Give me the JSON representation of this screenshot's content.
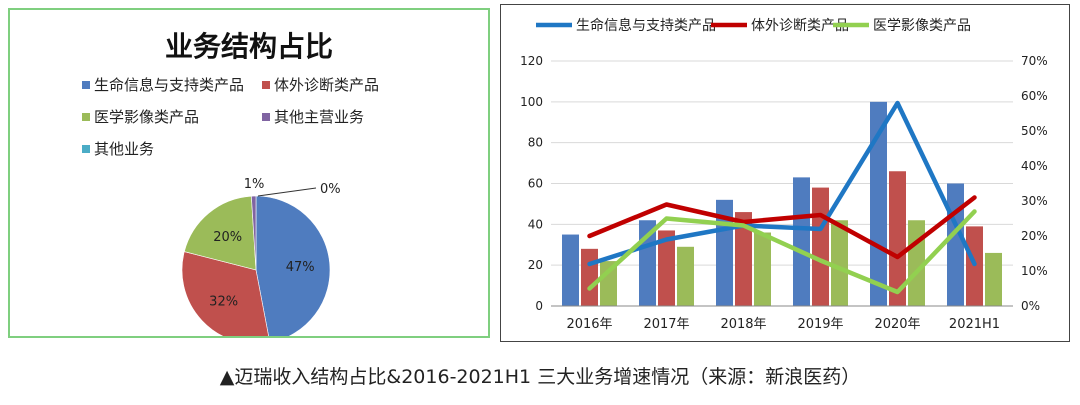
{
  "caption": "▲迈瑞收入结构占比&2016-2021H1 三大业务增速情况（来源：新浪医药）",
  "chart_data": [
    {
      "type": "pie",
      "title": "业务结构占比",
      "legend_placement": "top",
      "slices": [
        {
          "name": "生命信息与支持类产品",
          "value": 47,
          "label": "47%",
          "color": "#4f7cbf"
        },
        {
          "name": "体外诊断类产品",
          "value": 32,
          "label": "32%",
          "color": "#c0504d"
        },
        {
          "name": "医学影像类产品",
          "value": 20,
          "label": "20%",
          "color": "#9bbb59"
        },
        {
          "name": "其他主营业务",
          "value": 1,
          "label": "1%",
          "color": "#8064a2"
        },
        {
          "name": "其他业务",
          "value": 0,
          "label": "0%",
          "color": "#4bacc6"
        }
      ]
    },
    {
      "type": "bar",
      "title": "",
      "categories": [
        "2016年",
        "2017年",
        "2018年",
        "2019年",
        "2020年",
        "2021H1"
      ],
      "ylim": [
        0,
        120
      ],
      "yticks": [
        "0",
        "20",
        "40",
        "60",
        "80",
        "100",
        "120"
      ],
      "y2lim": [
        0,
        70
      ],
      "y2ticks": [
        "0%",
        "10%",
        "20%",
        "30%",
        "40%",
        "50%",
        "60%",
        "70%"
      ],
      "legend_placement": "top",
      "bar_series": [
        {
          "name": "生命信息与支持类产品",
          "color": "#4f7cbf",
          "values": [
            35,
            42,
            52,
            63,
            100,
            60
          ]
        },
        {
          "name": "体外诊断类产品",
          "color": "#c0504d",
          "values": [
            28,
            37,
            46,
            58,
            66,
            39
          ]
        },
        {
          "name": "医学影像类产品",
          "color": "#9bbb59",
          "values": [
            22,
            29,
            36,
            42,
            42,
            26
          ]
        }
      ],
      "line_series": [
        {
          "name": "生命信息与支持类产品",
          "color": "#1f77c4",
          "axis": "right",
          "values": [
            12,
            19,
            23,
            22,
            58,
            12
          ]
        },
        {
          "name": "体外诊断类产品",
          "color": "#c00000",
          "axis": "right",
          "values": [
            20,
            29,
            24,
            26,
            14,
            31
          ]
        },
        {
          "name": "医学影像类产品",
          "color": "#92d050",
          "axis": "right",
          "values": [
            5,
            25,
            23,
            13,
            4,
            27
          ]
        }
      ]
    }
  ]
}
